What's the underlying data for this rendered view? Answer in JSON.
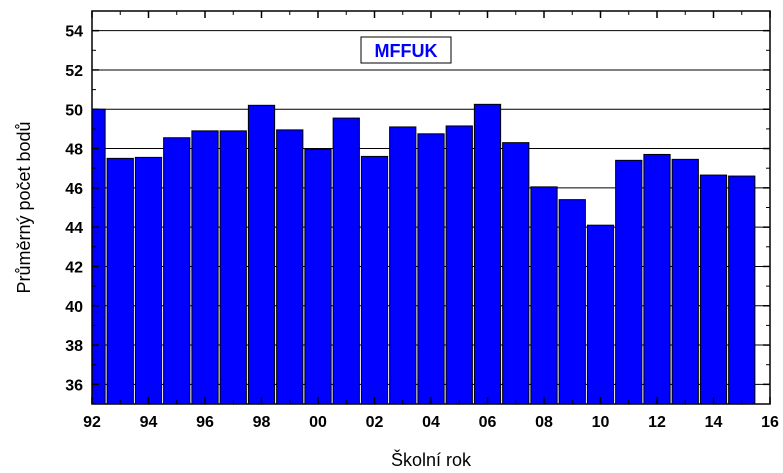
{
  "chart_data": {
    "type": "bar",
    "xlabel": "Školní rok",
    "ylabel": "Průměrný počet bodů",
    "legend_label": "MFFUK",
    "legend_position": "top-center",
    "bar_color": "#0000ff",
    "xlim": [
      92,
      116
    ],
    "ylim": [
      35,
      55
    ],
    "grid": "horizontal",
    "x_ticks": [
      {
        "value": 92,
        "label": "92"
      },
      {
        "value": 94,
        "label": "94"
      },
      {
        "value": 96,
        "label": "96"
      },
      {
        "value": 98,
        "label": "98"
      },
      {
        "value": 100,
        "label": "00"
      },
      {
        "value": 102,
        "label": "02"
      },
      {
        "value": 104,
        "label": "04"
      },
      {
        "value": 106,
        "label": "06"
      },
      {
        "value": 108,
        "label": "08"
      },
      {
        "value": 110,
        "label": "10"
      },
      {
        "value": 112,
        "label": "12"
      },
      {
        "value": 114,
        "label": "14"
      },
      {
        "value": 116,
        "label": "16"
      }
    ],
    "y_ticks": [
      36,
      38,
      40,
      42,
      44,
      46,
      48,
      50,
      52,
      54
    ],
    "x": [
      92,
      93,
      94,
      95,
      96,
      97,
      98,
      99,
      100,
      101,
      102,
      103,
      104,
      105,
      106,
      107,
      108,
      109,
      110,
      111,
      112,
      113,
      114,
      115
    ],
    "values": [
      50.0,
      47.5,
      47.55,
      48.55,
      48.9,
      48.9,
      50.2,
      48.95,
      47.95,
      49.55,
      47.6,
      49.1,
      48.75,
      49.15,
      50.25,
      48.3,
      46.05,
      45.4,
      44.1,
      47.4,
      47.7,
      47.45,
      46.65,
      46.6
    ]
  }
}
